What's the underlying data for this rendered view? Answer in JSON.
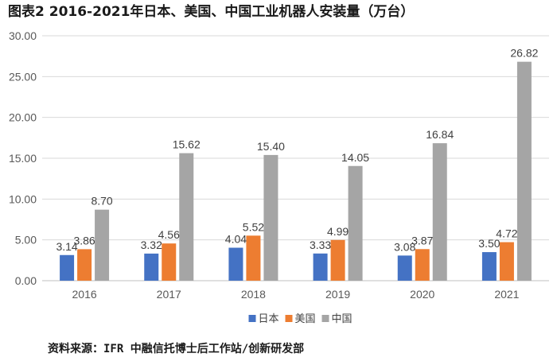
{
  "title": "图表2 2016-2021年日本、美国、中国工业机器人安装量（万台）",
  "source": "资料来源：IFR 中融信托博士后工作站/创新研发部",
  "chart_data": {
    "type": "bar",
    "categories": [
      "2016",
      "2017",
      "2018",
      "2019",
      "2020",
      "2021"
    ],
    "series": [
      {
        "name": "日本",
        "color": "#4472C4",
        "values": [
          3.14,
          3.32,
          4.04,
          3.33,
          3.08,
          3.5
        ]
      },
      {
        "name": "美国",
        "color": "#ED7D31",
        "values": [
          3.86,
          4.56,
          5.52,
          4.99,
          3.87,
          4.72
        ]
      },
      {
        "name": "中国",
        "color": "#A5A5A5",
        "values": [
          8.7,
          15.62,
          15.4,
          14.05,
          16.84,
          26.82
        ]
      }
    ],
    "ylim": [
      0,
      30
    ],
    "yticks": [
      "0.00",
      "5.00",
      "10.00",
      "15.00",
      "20.00",
      "25.00",
      "30.00"
    ],
    "grid": true,
    "legend": "bottom"
  }
}
